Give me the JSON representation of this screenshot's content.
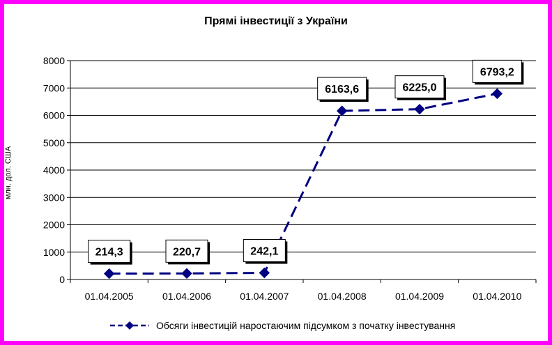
{
  "chart_data": {
    "type": "line",
    "title": "Прямі інвестиції з України",
    "ylabel": "млн. дол. США",
    "xlabel": "",
    "ylim": [
      0,
      8000
    ],
    "y_ticks": [
      "0",
      "1000",
      "2000",
      "3000",
      "4000",
      "5000",
      "6000",
      "7000",
      "8000"
    ],
    "categories": [
      "01.04.2005",
      "01.04.2006",
      "01.04.2007",
      "01.04.2008",
      "01.04.2009",
      "01.04.2010"
    ],
    "series": [
      {
        "name": "Обсяги інвестицій наростаючим підсумком з початку інвестування",
        "values": [
          214.3,
          220.7,
          242.1,
          6163.6,
          6225.0,
          6793.2
        ],
        "labels": [
          "214,3",
          "220,7",
          "242,1",
          "6163,6",
          "6225,0",
          "6793,2"
        ],
        "color": "#000080",
        "line_style": "dashed",
        "marker": "diamond"
      }
    ],
    "grid": true,
    "legend_position": "bottom",
    "background_color": "#ff00ff"
  }
}
